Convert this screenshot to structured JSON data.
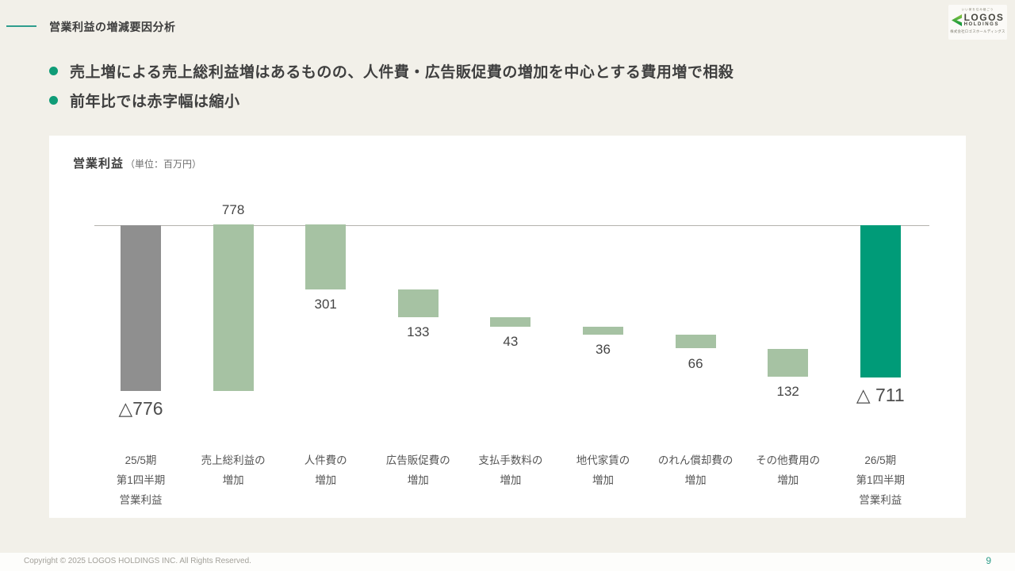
{
  "slide": {
    "header": {
      "title": "営業利益の増減要因分析"
    },
    "bullets": [
      "売上増による売上総利益増はあるものの、人件費・広告販促費の増加を中心とする費用増で相殺",
      "前年比では赤字幅は縮小"
    ],
    "footer": {
      "copyright": "Copyright © 2025 LOGOS HOLDINGS INC. All Rights Reserved.",
      "page_number": "9"
    }
  },
  "logo": {
    "tagline": "いい家を住み継ごう",
    "brand": "LOGOS",
    "brand_sub": "HOLDINGS",
    "company": "株式会社ロゴスホールディングス"
  },
  "chart_data": {
    "type": "bar",
    "subtype": "waterfall",
    "title": "営業利益",
    "unit_label": "（単位：百万円）",
    "baseline": 0,
    "gridlines": false,
    "legend": "none",
    "categories": [
      "25/5期 第1四半期 営業利益",
      "売上総利益の増加",
      "人件費の増加",
      "広告販促費の増加",
      "支払手数料の増加",
      "地代家賃の増加",
      "のれん償却費の増加",
      "その他費用の増加",
      "26/5期 第1四半期 営業利益"
    ],
    "colors": {
      "start_bar": "#8f8f8f",
      "delta_bar": "#a6c2a3",
      "total_bar": "#009b78"
    },
    "bars": [
      {
        "labels": [
          "25/5期",
          "第1四半期",
          "営業利益"
        ],
        "value": -776,
        "display": "△776",
        "role": "start",
        "color": "#8f8f8f",
        "value_label_position": "below",
        "value_label_size": "large"
      },
      {
        "labels": [
          "売上総利益の",
          "増加"
        ],
        "value": 778,
        "display": "778",
        "role": "delta",
        "color": "#a6c2a3",
        "value_label_position": "above",
        "value_label_size": "normal"
      },
      {
        "labels": [
          "人件費の",
          "増加"
        ],
        "value": -301,
        "display": "301",
        "role": "delta",
        "color": "#a6c2a3",
        "value_label_position": "below",
        "value_label_size": "normal"
      },
      {
        "labels": [
          "広告販促費の",
          "増加"
        ],
        "value": -133,
        "display": "133",
        "role": "delta",
        "color": "#a6c2a3",
        "value_label_position": "below",
        "value_label_size": "normal"
      },
      {
        "labels": [
          "支払手数料の",
          "増加"
        ],
        "value": -43,
        "display": "43",
        "role": "delta",
        "color": "#a6c2a3",
        "value_label_position": "below",
        "value_label_size": "normal"
      },
      {
        "labels": [
          "地代家賃の",
          "増加"
        ],
        "value": -36,
        "display": "36",
        "role": "delta",
        "color": "#a6c2a3",
        "value_label_position": "below",
        "value_label_size": "normal"
      },
      {
        "labels": [
          "のれん償却費の",
          "増加"
        ],
        "value": -66,
        "display": "66",
        "role": "delta",
        "color": "#a6c2a3",
        "value_label_position": "below",
        "value_label_size": "normal"
      },
      {
        "labels": [
          "その他費用の",
          "増加"
        ],
        "value": -132,
        "display": "132",
        "role": "delta",
        "color": "#a6c2a3",
        "value_label_position": "below",
        "value_label_size": "normal"
      },
      {
        "labels": [
          "26/5期",
          "第1四半期",
          "営業利益"
        ],
        "value": -711,
        "display": "△ 711",
        "role": "total",
        "color": "#009b78",
        "value_label_position": "below",
        "value_label_size": "large"
      }
    ]
  }
}
